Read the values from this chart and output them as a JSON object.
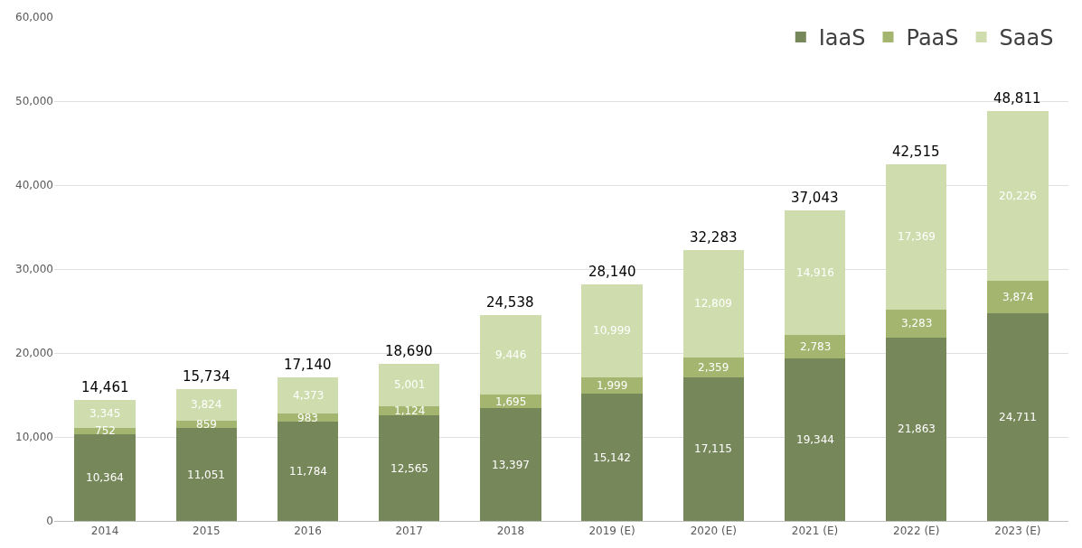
{
  "chart_data": {
    "type": "bar",
    "stacked": true,
    "categories": [
      "2014",
      "2015",
      "2016",
      "2017",
      "2018",
      "2019 (E)",
      "2020 (E)",
      "2021 (E)",
      "2022 (E)",
      "2023 (E)"
    ],
    "series": [
      {
        "name": "IaaS",
        "color": "#76875a",
        "values": [
          10364,
          11051,
          11784,
          12565,
          13397,
          15142,
          17115,
          19344,
          21863,
          24711
        ],
        "value_labels": [
          "10,364",
          "11,051",
          "11,784",
          "12,565",
          "13,397",
          "15,142",
          "17,115",
          "19,344",
          "21,863",
          "24,711"
        ]
      },
      {
        "name": "PaaS",
        "color": "#a3b56e",
        "values": [
          752,
          859,
          983,
          1124,
          1695,
          1999,
          2359,
          2783,
          3283,
          3874
        ],
        "value_labels": [
          "752",
          "859",
          "983",
          "1,124",
          "1,695",
          "1,999",
          "2,359",
          "2,783",
          "3,283",
          "3,874"
        ]
      },
      {
        "name": "SaaS",
        "color": "#cfdcae",
        "values": [
          3345,
          3824,
          4373,
          5001,
          9446,
          10999,
          12809,
          14916,
          17369,
          20226
        ],
        "value_labels": [
          "3,345",
          "3,824",
          "4,373",
          "5,001",
          "9,446",
          "10,999",
          "12,809",
          "14,916",
          "17,369",
          "20,226"
        ]
      }
    ],
    "totals": [
      "14,461",
      "15,734",
      "17,140",
      "18,690",
      "24,538",
      "28,140",
      "32,283",
      "37,043",
      "42,515",
      "48,811"
    ],
    "ylim": [
      0,
      60000
    ],
    "yticks": [
      {
        "value": 0,
        "label": "0"
      },
      {
        "value": 10000,
        "label": "10,000"
      },
      {
        "value": 20000,
        "label": "20,000"
      },
      {
        "value": 30000,
        "label": "30,000"
      },
      {
        "value": 40000,
        "label": "40,000"
      },
      {
        "value": 50000,
        "label": "50,000"
      },
      {
        "value": 60000,
        "label": "60,000"
      }
    ],
    "grid": "y",
    "legend": "top right"
  }
}
